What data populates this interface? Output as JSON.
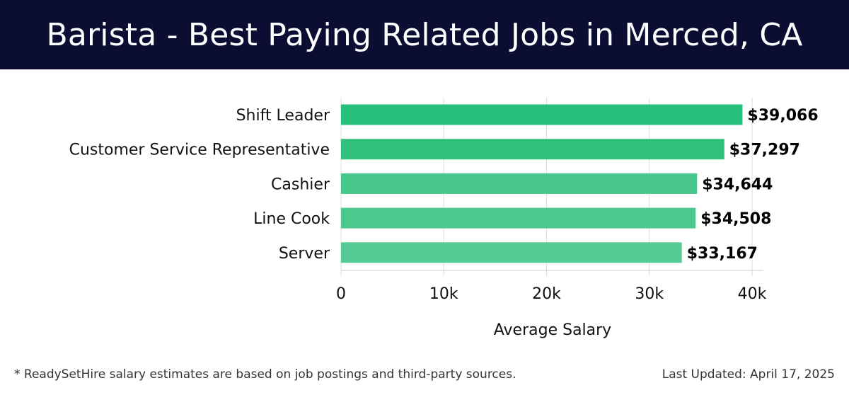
{
  "header": {
    "title": "Barista - Best Paying Related Jobs in Merced, CA"
  },
  "chart_data": {
    "type": "bar",
    "orientation": "horizontal",
    "categories": [
      "Shift Leader",
      "Customer Service Representative",
      "Cashier",
      "Line Cook",
      "Server"
    ],
    "values": [
      39066,
      37297,
      34644,
      34508,
      33167
    ],
    "value_labels": [
      "$39,066",
      "$37,297",
      "$34,644",
      "$34,508",
      "$33,167"
    ],
    "xlabel": "Average Salary",
    "xlim": [
      0,
      40000
    ],
    "xticks": [
      0,
      10000,
      20000,
      30000,
      40000
    ],
    "xtick_labels": [
      "0",
      "10k",
      "20k",
      "30k",
      "40k"
    ],
    "grid": true,
    "colors": [
      "#27c07a",
      "#31c17d",
      "#47c78b",
      "#4cc78e",
      "#55cb95"
    ]
  },
  "footer": {
    "note": "* ReadySetHire salary estimates are based on job postings and third-party sources.",
    "updated": "Last Updated: April 17, 2025"
  }
}
